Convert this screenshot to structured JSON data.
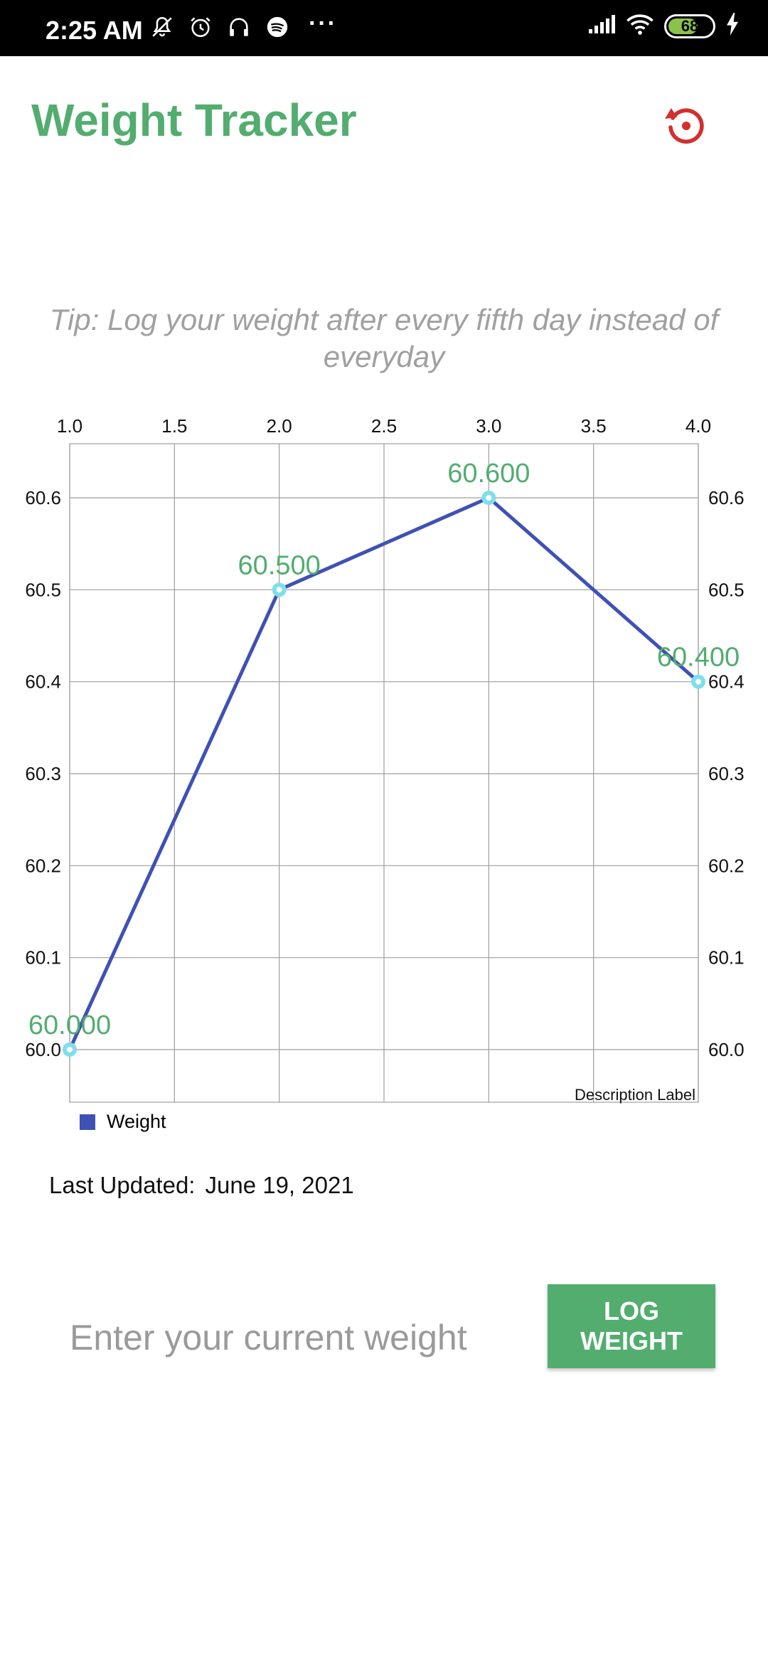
{
  "status_bar": {
    "time": "2:25 AM",
    "more": "···",
    "battery": "68",
    "icons": [
      "muted-bell-icon",
      "alarm-icon",
      "headphones-icon",
      "spotify-icon",
      "signal-icon",
      "wifi-icon",
      "battery-icon",
      "charging-icon"
    ]
  },
  "header": {
    "title": "Weight Tracker",
    "reset_icon": "reset-history-icon",
    "title_color": "#52ad6f",
    "reset_color": "#d32f2f"
  },
  "tip": "Tip: Log your weight after every fifth day instead of everyday",
  "chart_data": {
    "type": "line",
    "x": [
      1.0,
      2.0,
      3.0,
      4.0
    ],
    "series": [
      {
        "name": "Weight",
        "values": [
          60.0,
          60.5,
          60.6,
          60.4
        ],
        "color": "#3f51b5"
      }
    ],
    "data_labels": [
      "60.000",
      "60.500",
      "60.600",
      "60.400"
    ],
    "x_ticks": [
      "1.0",
      "1.5",
      "2.0",
      "2.5",
      "3.0",
      "3.5",
      "4.0"
    ],
    "x_tick_values": [
      1.0,
      1.5,
      2.0,
      2.5,
      3.0,
      3.5,
      4.0
    ],
    "y_ticks": [
      "60.0",
      "60.1",
      "60.2",
      "60.3",
      "60.4",
      "60.5",
      "60.6"
    ],
    "y_tick_values": [
      60.0,
      60.1,
      60.2,
      60.3,
      60.4,
      60.5,
      60.6
    ],
    "xlim": [
      1.0,
      4.0
    ],
    "ylim": [
      60.0,
      60.6
    ],
    "description": "Description Label",
    "grid": true,
    "legend": "bottom-left",
    "label_color": "#52ad6f",
    "marker_color": "#80deea"
  },
  "legend": {
    "label": "Weight"
  },
  "last_updated": {
    "label": "Last Updated:",
    "value": "June 19, 2021"
  },
  "input": {
    "placeholder": "Enter your current weight",
    "value": ""
  },
  "log_button": {
    "label": "LOG WEIGHT"
  }
}
